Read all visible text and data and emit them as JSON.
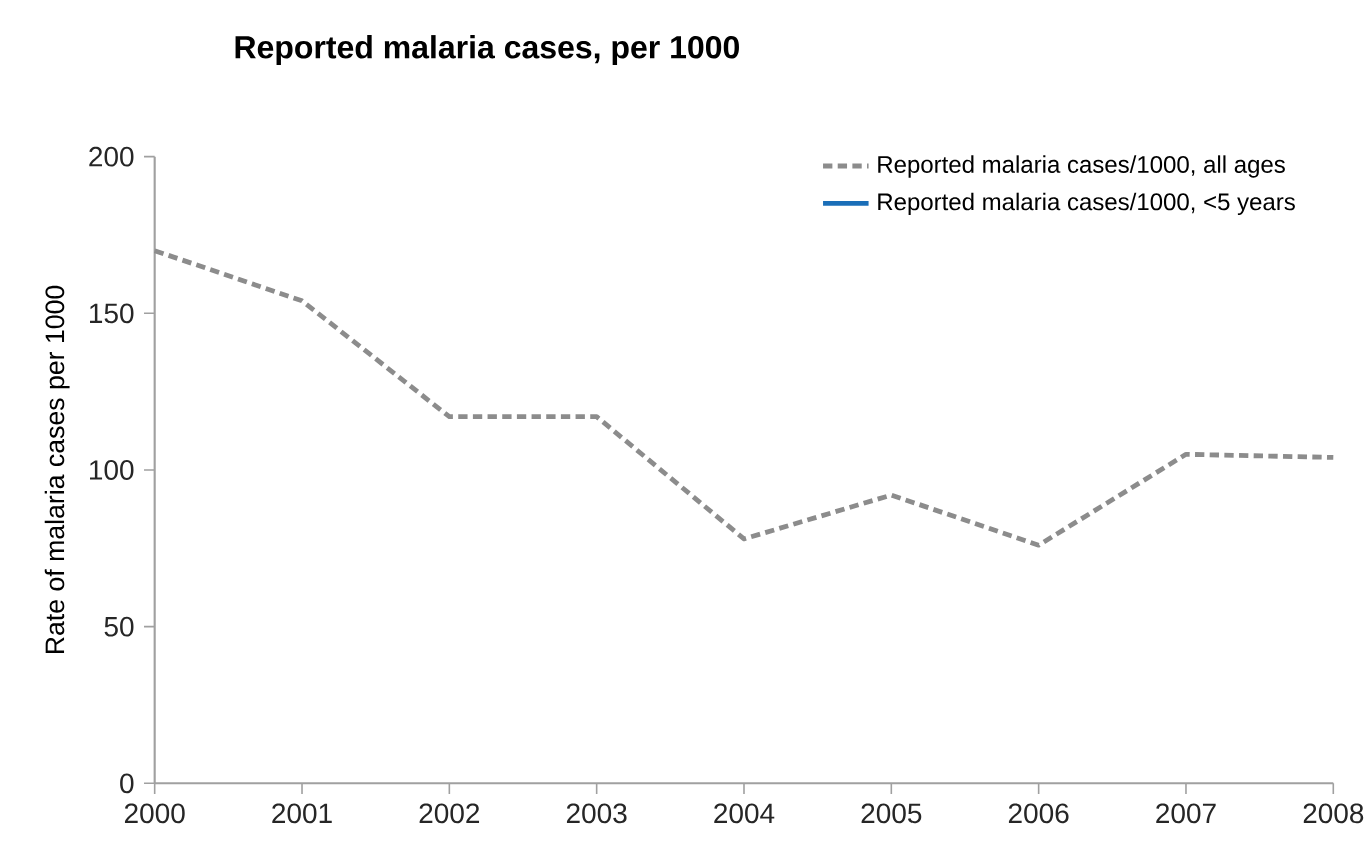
{
  "chart_data": {
    "type": "line",
    "title": "Reported malaria cases, per 1000",
    "ylabel": "Rate of malaria cases per 1000",
    "categories": [
      "2000",
      "2001",
      "2002",
      "2003",
      "2004",
      "2005",
      "2006",
      "2007",
      "2008"
    ],
    "series": [
      {
        "name": "Reported  malaria cases/1000, all ages",
        "color": "#8c8c8c",
        "line_style": "dashed",
        "values": [
          170,
          154,
          117,
          117,
          78,
          92,
          76,
          105,
          104
        ]
      },
      {
        "name": "Reported  malaria cases/1000, <5 years",
        "color": "#1a6eb8",
        "line_style": "solid",
        "values": [
          null,
          null,
          null,
          null,
          null,
          null,
          null,
          null,
          null
        ]
      }
    ],
    "ylim": [
      0,
      200
    ],
    "yticks": [
      0,
      50,
      100,
      150,
      200
    ],
    "grid": false,
    "legend": "top right",
    "marker": "none"
  }
}
